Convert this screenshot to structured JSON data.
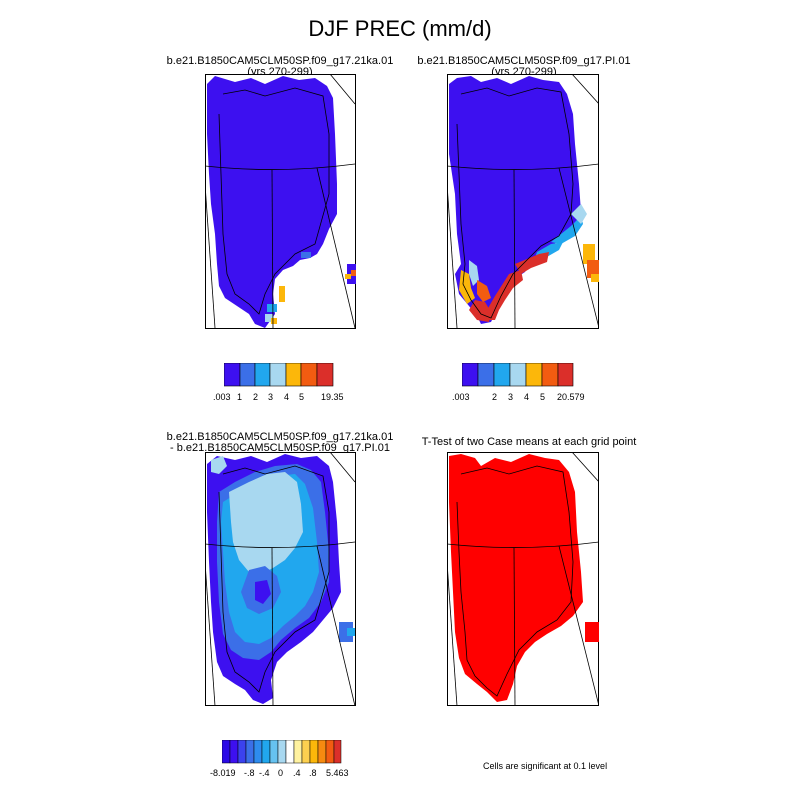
{
  "title": "DJF PREC (mm/d)",
  "colors": {
    "blue_dark": "#3d10f0",
    "blue_mid": "#3b6fe8",
    "cyan": "#21a7ee",
    "light_cyan": "#a8d8f0",
    "orange": "#fcb70a",
    "orange_red": "#f25c11",
    "red": "#db2f2a",
    "sig_red": "#ff0000"
  },
  "panels": [
    {
      "title_line1": "b.e21.B1850CAM5CLM50SP.f09_g17.21ka.01",
      "title_line2": "(yrs 270-299)",
      "colorbar_labels": [
        ".003",
        "1",
        "2",
        "3",
        "4",
        "5",
        "19.35"
      ]
    },
    {
      "title_line1": "b.e21.B1850CAM5CLM50SP.f09_g17.PI.01",
      "title_line2": "(yrs 270-299)",
      "colorbar_labels": [
        ".003",
        "2",
        "3",
        "4",
        "5",
        "20.579"
      ]
    },
    {
      "title_line1": "b.e21.B1850CAM5CLM50SP.f09_g17.21ka.01",
      "title_line2": "- b.e21.B1850CAM5CLM50SP.f09_g17.PI.01",
      "colorbar_labels": [
        "-8.019",
        "-.8",
        "-.4",
        "0",
        ".4",
        ".8",
        "5.463"
      ]
    },
    {
      "title_line1": "T-Test of two Case means at each grid point",
      "title_line2": ""
    }
  ],
  "footnote": "Cells are significant at 0.1 level",
  "chart_data": [
    {
      "type": "heatmap",
      "title": "b.e21.B1850CAM5CLM50SP.f09_g17.21ka.01 (yrs 270-299)",
      "variable": "DJF PREC (mm/d)",
      "color_levels": [
        ".003",
        "1",
        "2",
        "3",
        "4",
        "5",
        "19.35"
      ],
      "description": "Greenland interior mostly lowest bin; a few higher cells along the southeast coast"
    },
    {
      "type": "heatmap",
      "title": "b.e21.B1850CAM5CLM50SP.f09_g17.PI.01 (yrs 270-299)",
      "variable": "DJF PREC (mm/d)",
      "color_levels": [
        ".003",
        "2",
        "3",
        "4",
        "5",
        "20.579"
      ],
      "description": "Interior lowest bin; high values (4 to >5) along the southeast and southern coasts"
    },
    {
      "type": "heatmap",
      "title": "b.e21.B1850CAM5CLM50SP.f09_g17.21ka.01 - b.e21.B1850CAM5CLM50SP.f09_g17.PI.01",
      "variable": "DJF PREC difference (mm/d)",
      "color_levels": [
        "-8.019",
        "-.8",
        "-.4",
        "0",
        ".4",
        ".8",
        "5.463"
      ],
      "description": "Negative differences everywhere; strongest in the south and along the coasts"
    },
    {
      "type": "heatmap",
      "title": "T-Test of two Case means at each grid point",
      "description": "All land cells significant at 0.1 level"
    }
  ]
}
